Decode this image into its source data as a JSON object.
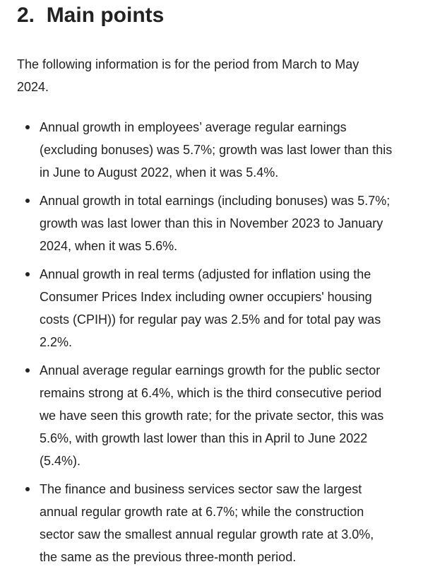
{
  "heading": "2.  Main points",
  "intro": "The following information is for the period from March to May 2024.",
  "bullets": [
    "Annual growth in employees’ average regular earnings (excluding bonuses) was 5.7%; growth was last lower than this in June to August 2022, when it was 5.4%.",
    "Annual growth in total earnings (including bonuses) was 5.7%; growth was last lower than this in November 2023 to January 2024, when it was 5.6%.",
    "Annual growth in real terms (adjusted for inflation using the Consumer Prices Index including owner occupiers' housing costs (CPIH)) for regular pay was 2.5% and for total pay was 2.2%.",
    "Annual average regular earnings growth for the public sector remains strong at 6.4%, which is the third consecutive period we have seen this growth rate; for the private sector, this was 5.6%, with growth last lower than this in April to June 2022 (5.4%).",
    "The finance and business services sector saw the largest annual regular growth rate at 6.7%; while the construction sector saw the smallest annual regular growth rate at 3.0%, the same as the previous three-month period."
  ]
}
